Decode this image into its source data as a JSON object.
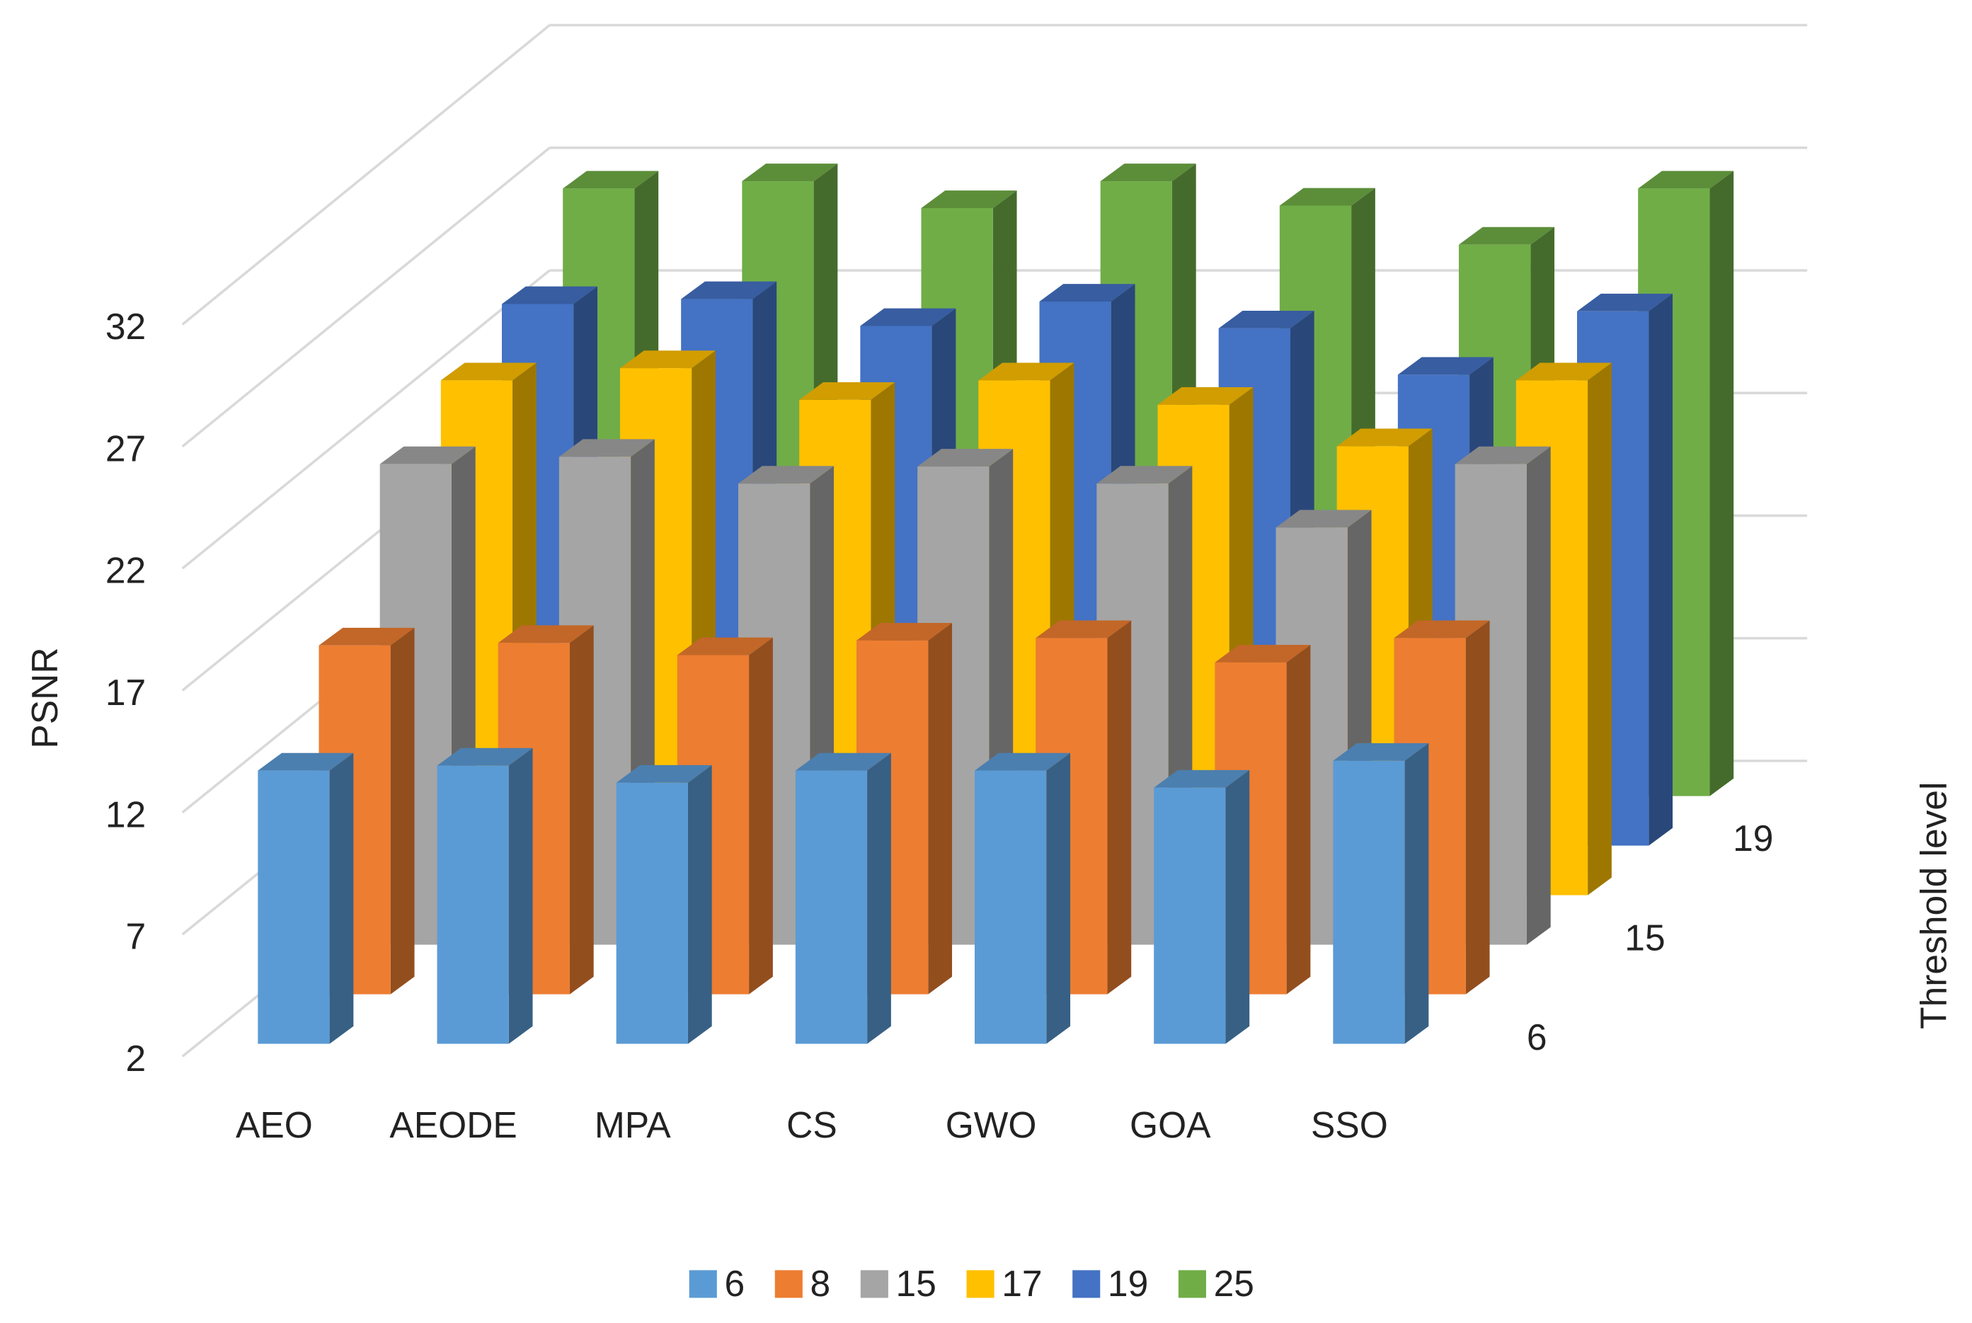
{
  "chart_data": {
    "type": "bar3d",
    "y_label": "PSNR",
    "depth_label": "Threshold level",
    "categories": [
      "AEO",
      "AEODE",
      "MPA",
      "CS",
      "GWO",
      "GOA",
      "SSO"
    ],
    "series": [
      {
        "name": "6",
        "color": "#5b9bd5",
        "values": [
          13.2,
          13.4,
          12.7,
          13.2,
          13.2,
          12.5,
          13.6
        ]
      },
      {
        "name": "8",
        "color": "#ed7d31",
        "values": [
          16.3,
          16.4,
          15.9,
          16.5,
          16.6,
          15.6,
          16.6
        ]
      },
      {
        "name": "15",
        "color": "#a5a5a5",
        "values": [
          21.7,
          22.0,
          20.9,
          21.6,
          20.9,
          19.1,
          21.7
        ]
      },
      {
        "name": "17",
        "color": "#ffc000",
        "values": [
          23.1,
          23.6,
          22.3,
          23.1,
          22.1,
          20.4,
          23.1
        ]
      },
      {
        "name": "19",
        "color": "#4472c4",
        "values": [
          24.2,
          24.4,
          23.3,
          24.3,
          23.2,
          21.3,
          23.9
        ]
      },
      {
        "name": "25",
        "color": "#70ad47",
        "values": [
          26.9,
          27.2,
          26.1,
          27.2,
          26.2,
          24.6,
          26.9
        ]
      }
    ],
    "depth_labeled_series": [
      0,
      2,
      4
    ],
    "ylim": [
      2,
      32
    ],
    "yticks": [
      2,
      7,
      12,
      17,
      22,
      27,
      32
    ],
    "grid": true,
    "legend": "bottom"
  }
}
